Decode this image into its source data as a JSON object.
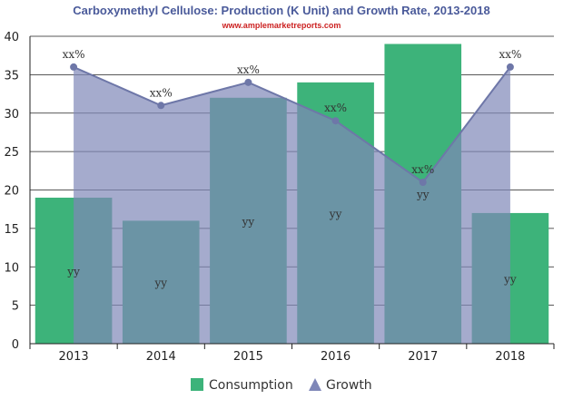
{
  "chart_data": {
    "type": "bar",
    "title": "Carboxymethyl Cellulose: Production (K Unit) and Growth Rate, 2013-2018",
    "subtitle": "www.amplemarketreports.com",
    "categories": [
      "2013",
      "2014",
      "2015",
      "2016",
      "2017",
      "2018"
    ],
    "series": [
      {
        "name": "Consumption",
        "type": "bar",
        "color": "#3db37a",
        "values": [
          19,
          16,
          32,
          34,
          39,
          17
        ],
        "labels": [
          "yy",
          "yy",
          "yy",
          "yy",
          "yy",
          "yy"
        ]
      },
      {
        "name": "Growth",
        "type": "area",
        "color": "#7f87b8",
        "values": [
          36,
          31,
          34,
          29,
          21,
          36
        ],
        "labels": [
          "xx%",
          "xx%",
          "xx%",
          "xx%",
          "xx%",
          "xx%"
        ]
      }
    ],
    "ylim": [
      0,
      40
    ],
    "yticks": [
      "0",
      "5",
      "10",
      "15",
      "20",
      "25",
      "30",
      "35",
      "40"
    ],
    "grid": true,
    "legend_position": "bottom",
    "legend_icons": [
      "square",
      "triangle"
    ]
  }
}
